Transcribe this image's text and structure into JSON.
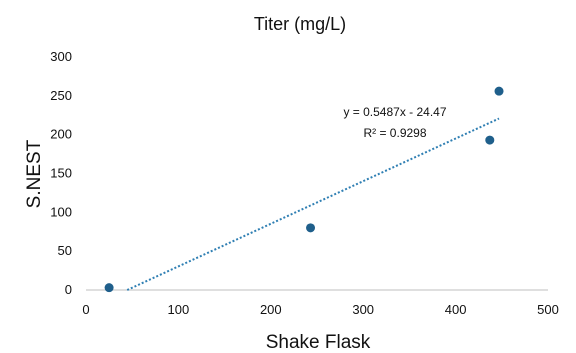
{
  "chart_data": {
    "type": "scatter",
    "title": "Titer (mg/L)",
    "xlabel": "Shake Flask",
    "ylabel": "S.NEST",
    "xlim": [
      0,
      500
    ],
    "ylim": [
      0,
      300
    ],
    "xticks": [
      0,
      100,
      200,
      300,
      400,
      500
    ],
    "yticks": [
      0,
      50,
      100,
      150,
      200,
      250,
      300
    ],
    "grid": false,
    "legend": "none",
    "series": [
      {
        "color": "#1f5f8b",
        "points": [
          {
            "x": 25,
            "y": 3
          },
          {
            "x": 243,
            "y": 80
          },
          {
            "x": 437,
            "y": 193
          },
          {
            "x": 447,
            "y": 256
          }
        ]
      }
    ],
    "trendline": {
      "type": "linear",
      "slope": 0.5487,
      "intercept": -24.47,
      "x_range": [
        44.6,
        447
      ],
      "color": "#2f7fb3",
      "equation_text": "y = 0.5487x - 24.47",
      "r2_text": "R² = 0.9298"
    }
  }
}
